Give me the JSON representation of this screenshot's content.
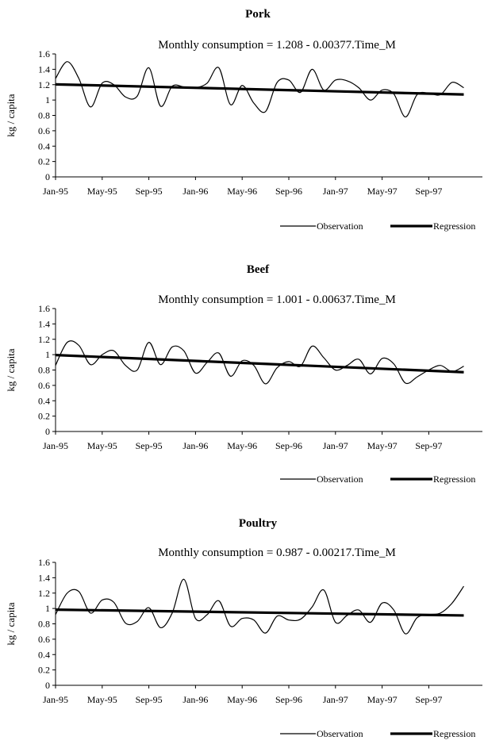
{
  "chart_data": [
    {
      "type": "line",
      "title": "Pork",
      "subtitle": "Monthly consumption = 1.208 - 0.00377.Time_M",
      "xlabel": "",
      "ylabel": "kg / capita",
      "ylim": [
        0,
        1.6
      ],
      "yticks": [
        "0",
        "0.2",
        "0.4",
        "0.6",
        "0.8",
        "1",
        "1.2",
        "1.4",
        "1.6"
      ],
      "xtick_labels": [
        "Jan-95",
        "May-95",
        "Sep-95",
        "Jan-96",
        "May-96",
        "Sep-96",
        "Jan-97",
        "May-97",
        "Sep-97"
      ],
      "x_months": 36,
      "legend_position": "bottom-right",
      "series": [
        {
          "name": "Observation",
          "style": "thin",
          "values": [
            1.28,
            1.5,
            1.28,
            0.91,
            1.22,
            1.2,
            1.04,
            1.05,
            1.42,
            0.92,
            1.18,
            1.17,
            1.16,
            1.22,
            1.42,
            0.94,
            1.19,
            0.96,
            0.85,
            1.23,
            1.26,
            1.1,
            1.4,
            1.13,
            1.26,
            1.25,
            1.16,
            1.0,
            1.13,
            1.08,
            0.78,
            1.07,
            1.09,
            1.07,
            1.23,
            1.16
          ]
        },
        {
          "name": "Regression",
          "style": "thick",
          "intercept": 1.208,
          "slope": -0.00377
        }
      ]
    },
    {
      "type": "line",
      "title": "Beef",
      "subtitle": "Monthly consumption = 1.001 - 0.00637.Time_M",
      "xlabel": "",
      "ylabel": "kg / capita",
      "ylim": [
        0,
        1.6
      ],
      "yticks": [
        "0",
        "0.2",
        "0.4",
        "0.6",
        "0.8",
        "1",
        "1.2",
        "1.4",
        "1.6"
      ],
      "xtick_labels": [
        "Jan-95",
        "May-95",
        "Sep-95",
        "Jan-96",
        "May-96",
        "Sep-96",
        "Jan-97",
        "May-97",
        "Sep-97"
      ],
      "x_months": 36,
      "legend_position": "bottom-right",
      "series": [
        {
          "name": "Observation",
          "style": "thin",
          "values": [
            0.86,
            1.16,
            1.12,
            0.87,
            1.0,
            1.05,
            0.86,
            0.8,
            1.16,
            0.87,
            1.1,
            1.05,
            0.76,
            0.9,
            1.02,
            0.72,
            0.92,
            0.86,
            0.62,
            0.83,
            0.91,
            0.85,
            1.11,
            0.96,
            0.8,
            0.86,
            0.94,
            0.75,
            0.95,
            0.88,
            0.63,
            0.71,
            0.8,
            0.86,
            0.78,
            0.85
          ]
        },
        {
          "name": "Regression",
          "style": "thick",
          "intercept": 1.001,
          "slope": -0.00637
        }
      ]
    },
    {
      "type": "line",
      "title": "Poultry",
      "subtitle": "Monthly consumption = 0.987 - 0.00217.Time_M",
      "xlabel": "",
      "ylabel": "kg / capita",
      "ylim": [
        0,
        1.6
      ],
      "yticks": [
        "0",
        "0.2",
        "0.4",
        "0.6",
        "0.8",
        "1",
        "1.2",
        "1.4",
        "1.6"
      ],
      "xtick_labels": [
        "Jan-95",
        "May-95",
        "Sep-95",
        "Jan-96",
        "May-96",
        "Sep-96",
        "Jan-97",
        "May-97",
        "Sep-97"
      ],
      "x_months": 36,
      "legend_position": "bottom-right",
      "series": [
        {
          "name": "Observation",
          "style": "thin",
          "values": [
            0.92,
            1.2,
            1.22,
            0.94,
            1.11,
            1.08,
            0.81,
            0.83,
            1.01,
            0.75,
            0.94,
            1.38,
            0.87,
            0.92,
            1.1,
            0.77,
            0.87,
            0.85,
            0.68,
            0.9,
            0.85,
            0.86,
            1.02,
            1.24,
            0.82,
            0.91,
            0.98,
            0.82,
            1.07,
            0.98,
            0.67,
            0.88,
            0.92,
            0.94,
            1.07,
            1.29
          ]
        },
        {
          "name": "Regression",
          "style": "thick",
          "intercept": 0.987,
          "slope": -0.00217
        }
      ]
    }
  ]
}
